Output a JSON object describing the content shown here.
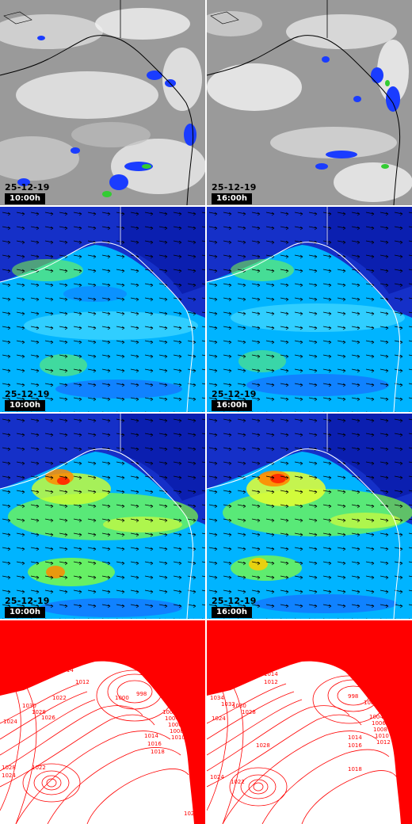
{
  "panels": [
    {
      "row": "satellite",
      "date": "25-12-19",
      "time": "10:00h"
    },
    {
      "row": "satellite",
      "date": "25-12-19",
      "time": "16:00h"
    },
    {
      "row": "wind-surface",
      "date": "25-12-19",
      "time": "10:00h"
    },
    {
      "row": "wind-surface",
      "date": "25-12-19",
      "time": "16:00h"
    },
    {
      "row": "wind-altitude",
      "date": "25-12-19",
      "time": "10:00h"
    },
    {
      "row": "wind-altitude",
      "date": "25-12-19",
      "time": "16:00h"
    },
    {
      "row": "pressure",
      "date": "",
      "time": ""
    },
    {
      "row": "pressure",
      "date": "",
      "time": ""
    }
  ],
  "isobars_left": [
    "1024",
    "1030",
    "1028",
    "1026",
    "1022",
    "1014",
    "1012",
    "998",
    "1000",
    "1002",
    "1004",
    "1006",
    "1008",
    "1010",
    "1014",
    "1016",
    "1018",
    "1028",
    "1024",
    "1022",
    "1022"
  ],
  "isobars_right": [
    "1034",
    "1032",
    "1030",
    "1028",
    "1024",
    "1014",
    "1012",
    "998",
    "1000",
    "1004",
    "1006",
    "1008",
    "1010",
    "1012",
    "1014",
    "1016",
    "1018",
    "1028",
    "1024",
    "1022"
  ],
  "colors": {
    "satellite_bg": "#9a9a9a",
    "cloud": "#ffffff",
    "precip_blue": "#1a3cff",
    "precip_green": "#33cc33",
    "wind_low": "#0b1fb0",
    "wind_mid": "#00b4ff",
    "wind_high": "#7fff3f",
    "wind_max": "#ff3000",
    "isobar": "#ff0000"
  }
}
